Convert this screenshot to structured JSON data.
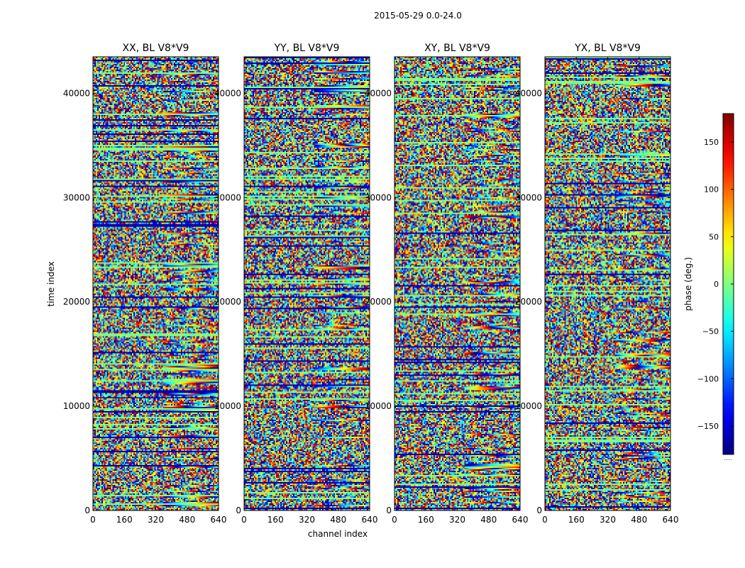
{
  "figure": {
    "suptitle": "2015-05-29 0.0-24.0"
  },
  "chart_data": {
    "type": "heatmap",
    "suptitle": "2015-05-29 0.0-24.0",
    "xlabel": "channel index",
    "ylabel": "time index",
    "xlim": [
      0,
      640
    ],
    "ylim": [
      0,
      43500
    ],
    "xticks": [
      0,
      160,
      320,
      480,
      640
    ],
    "yticks": [
      0,
      10000,
      20000,
      30000,
      40000
    ],
    "colormap": "jet",
    "colorbar": {
      "label": "phase (deg.)",
      "range": [
        -180,
        180
      ],
      "ticks": [
        -150,
        -100,
        -50,
        0,
        50,
        100,
        150
      ],
      "tick_labels": [
        "−150",
        "−100",
        "−50",
        "0",
        "50",
        "100",
        "150"
      ]
    },
    "panels": [
      {
        "title": "XX, BL V8*V9",
        "seed": 11
      },
      {
        "title": "YY, BL V8*V9",
        "seed": 23
      },
      {
        "title": "XY, BL V8*V9",
        "seed": 37
      },
      {
        "title": "YX, BL V8*V9",
        "seed": 53
      }
    ],
    "colorbar_min_label": "....."
  }
}
